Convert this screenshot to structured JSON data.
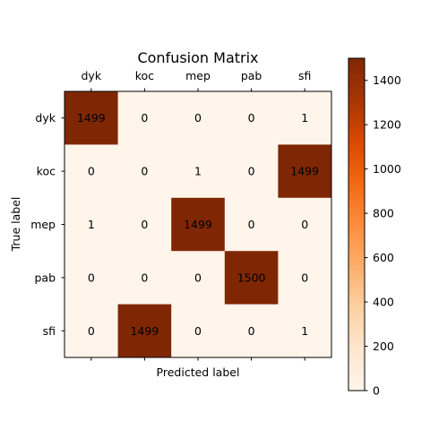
{
  "chart_data": {
    "type": "heatmap",
    "title": "Confusion Matrix",
    "xlabel": "Predicted label",
    "ylabel": "True label",
    "x_categories": [
      "dyk",
      "koc",
      "mep",
      "pab",
      "sfi"
    ],
    "y_categories": [
      "dyk",
      "koc",
      "mep",
      "pab",
      "sfi"
    ],
    "values": [
      [
        1499,
        0,
        0,
        0,
        1
      ],
      [
        0,
        0,
        1,
        0,
        1499
      ],
      [
        1,
        0,
        1499,
        0,
        0
      ],
      [
        0,
        0,
        0,
        1500,
        0
      ],
      [
        0,
        1499,
        0,
        0,
        1
      ]
    ],
    "colormap": "Oranges",
    "colorbar": {
      "range": [
        0,
        1500
      ],
      "ticks": [
        0,
        200,
        400,
        600,
        800,
        1000,
        1200,
        1400
      ]
    },
    "colors": {
      "low": "#fff5eb",
      "high": "#7f2704"
    }
  }
}
